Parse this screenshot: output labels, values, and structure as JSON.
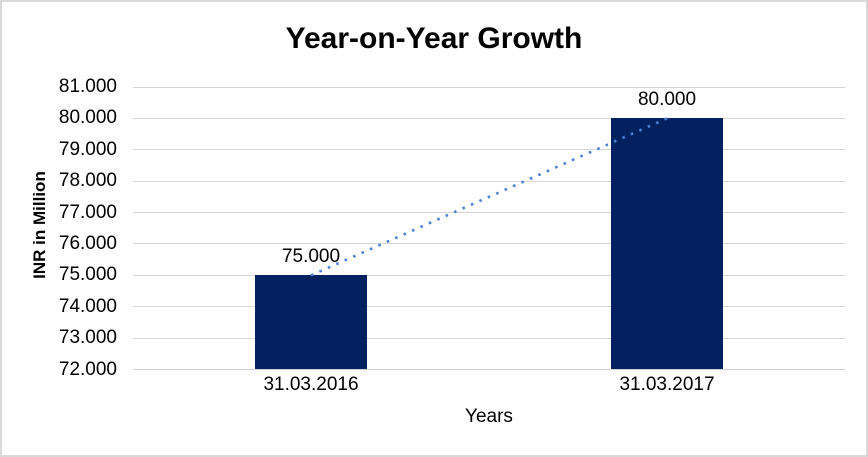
{
  "chart_data": {
    "type": "bar",
    "title": "Year-on-Year Growth",
    "xlabel": "Years",
    "ylabel": "INR in Million",
    "categories": [
      "31.03.2016",
      "31.03.2017"
    ],
    "values": [
      75,
      80
    ],
    "value_labels": [
      "75.000",
      "80.000"
    ],
    "ylim": [
      72,
      81
    ],
    "y_tick_step": 1,
    "y_tick_labels": [
      "72.000",
      "73.000",
      "74.000",
      "75.000",
      "76.000",
      "77.000",
      "78.000",
      "79.000",
      "80.000",
      "81.000"
    ],
    "grid": "horizontal-only",
    "legend": "none",
    "trendline": {
      "type": "linear",
      "style": "dotted",
      "from_value": 75,
      "to_value": 80
    }
  },
  "colors": {
    "bar": "#03215E",
    "trendline": "#4C80D2",
    "gridline": "#D6D6D6",
    "axis_line": "#D0D0D0",
    "border": "#D9D9D9",
    "text": "#000000",
    "background": "#FFFFFF"
  }
}
